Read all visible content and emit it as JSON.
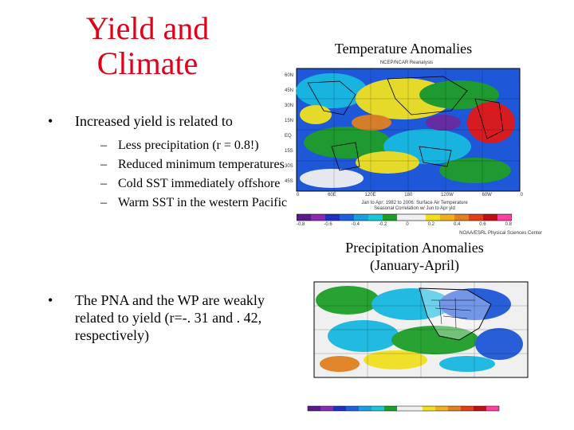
{
  "slide": {
    "title_line1": "Yield and",
    "title_line2": "Climate",
    "bullet1": "Increased yield is related to",
    "subbullets": [
      "Less precipitation (r = 0.8!)",
      "Reduced minimum temperatures",
      "Cold SST immediately offshore",
      "Warm SST in the western Pacific"
    ],
    "bullet2": "The PNA and the WP are weakly related to yield (r=-. 31 and . 42, respectively)",
    "bullet_glyph": "•",
    "dash_glyph": "–"
  },
  "temp_panel": {
    "title": "Temperature Anomalies",
    "header": "NCEP/NCAR Reanalysis",
    "lat_ticks": [
      "60N",
      "45N",
      "30N",
      "15N",
      "EQ",
      "15S",
      "30S",
      "45S",
      "60S"
    ],
    "lon_ticks": [
      "0",
      "60E",
      "120E",
      "180",
      "120W",
      "60W",
      "0"
    ],
    "caption_line1": "Jan to Apr: 1982 to 2006: Surface Air Temperature",
    "caption_line2": "Seasonal Correlation w/ Jun to Apr yld",
    "scale_ticks": [
      "-0.8",
      "-0.6",
      "-0.4",
      "-0.2",
      "0",
      "0.2",
      "0.4",
      "0.6",
      "0.8"
    ],
    "credit": "NOAA/ESRL Physical Sciences Center"
  },
  "precip_panel": {
    "title_line1": "Precipitation Anomalies",
    "title_line2": "(January-April)"
  },
  "colors": {
    "title_red": "#e0001a",
    "ocean_blue": "#1e58d8",
    "land_green": "#1e9e28",
    "warm_yellow": "#f0e020",
    "hot_red": "#e01818",
    "cold_purple": "#6a2aa0"
  }
}
